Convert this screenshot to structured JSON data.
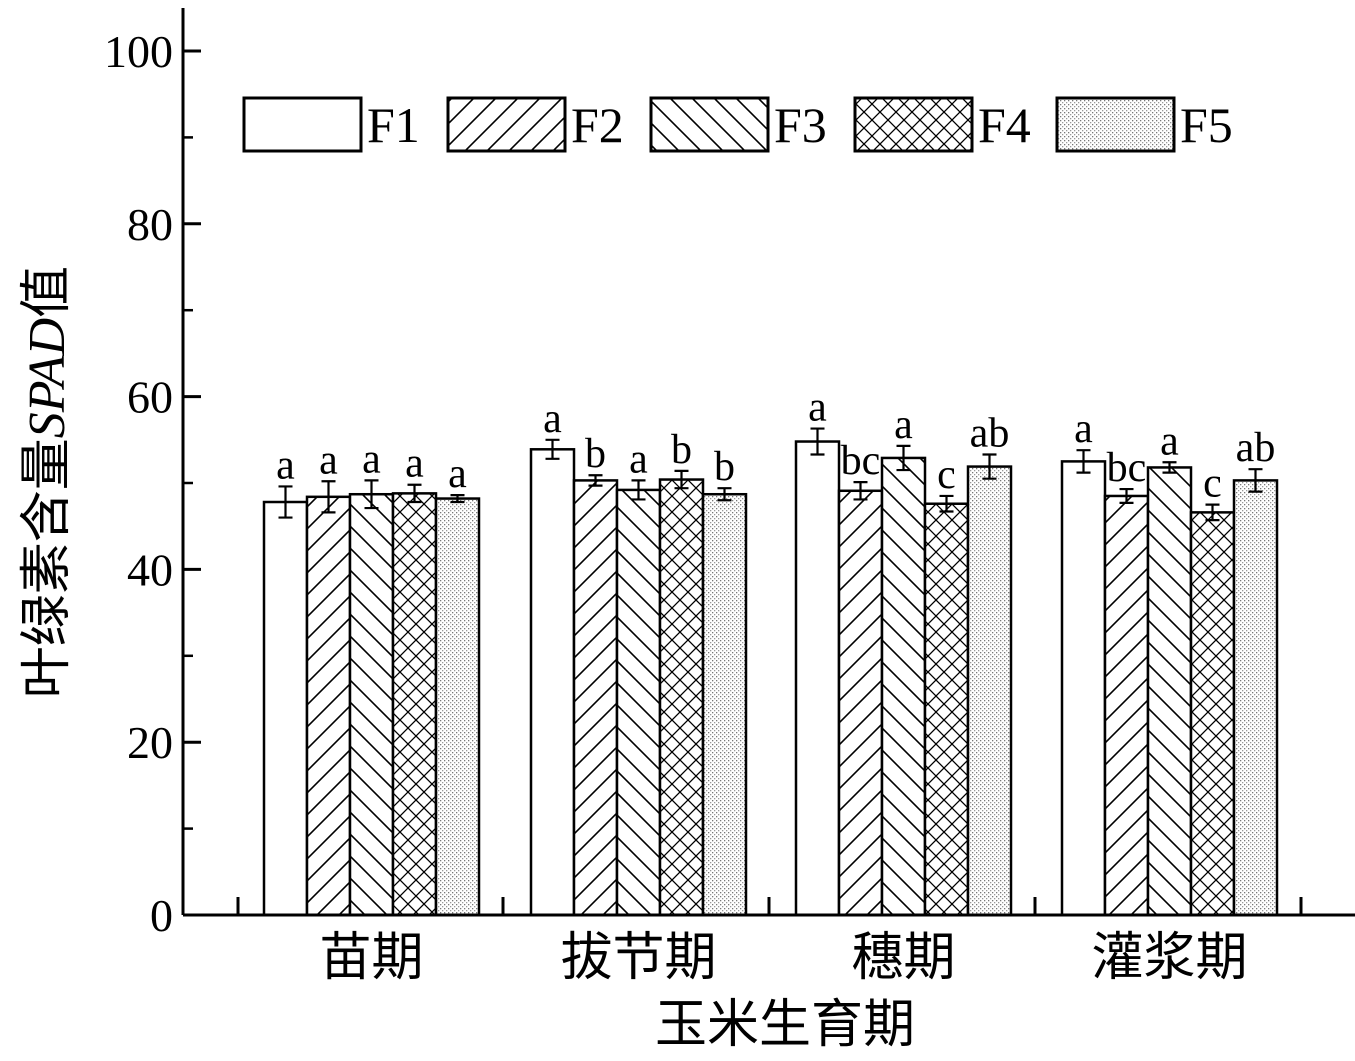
{
  "chart_data": {
    "type": "bar",
    "xlabel": "玉米生育期",
    "ylabel_main": "叶绿素含量",
    "ylabel_italic": "SPAD",
    "ylabel_end": "值",
    "ylim": [
      0,
      100
    ],
    "yticks": [
      0,
      20,
      40,
      60,
      80,
      100
    ],
    "categories": [
      "苗期",
      "拔节期",
      "穗期",
      "灌浆期"
    ],
    "legend_position": "top",
    "series": [
      {
        "name": "F1",
        "pattern": "none",
        "values": [
          47.8,
          53.9,
          54.8,
          52.5
        ],
        "errors": [
          1.8,
          1.1,
          1.5,
          1.3
        ],
        "letters": [
          "a",
          "a",
          "a",
          "a"
        ]
      },
      {
        "name": "F2",
        "pattern": "forward-diagonal",
        "values": [
          48.4,
          50.3,
          49.1,
          48.5
        ],
        "errors": [
          1.8,
          0.6,
          1.0,
          0.8
        ],
        "letters": [
          "a",
          "b",
          "bc",
          "bc"
        ]
      },
      {
        "name": "F3",
        "pattern": "back-diagonal",
        "values": [
          48.7,
          49.2,
          52.9,
          51.8
        ],
        "errors": [
          1.6,
          1.1,
          1.4,
          0.6
        ],
        "letters": [
          "a",
          "a",
          "a",
          "a"
        ]
      },
      {
        "name": "F4",
        "pattern": "crosshatch",
        "values": [
          48.8,
          50.4,
          47.6,
          46.6
        ],
        "errors": [
          1.0,
          1.0,
          0.9,
          0.9
        ],
        "letters": [
          "a",
          "b",
          "c",
          "c"
        ]
      },
      {
        "name": "F5",
        "pattern": "dots",
        "values": [
          48.2,
          48.7,
          51.9,
          50.3
        ],
        "errors": [
          0.4,
          0.7,
          1.4,
          1.3
        ],
        "letters": [
          "a",
          "b",
          "ab",
          "ab"
        ]
      }
    ]
  }
}
